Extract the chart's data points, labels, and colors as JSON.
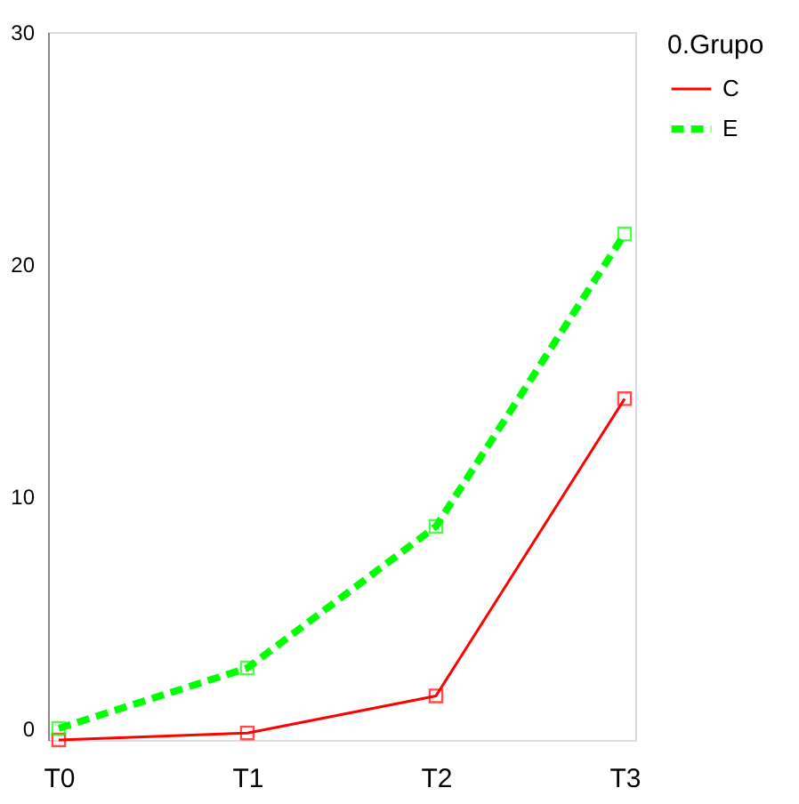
{
  "chart_data": {
    "type": "line",
    "categories": [
      "T0",
      "T1",
      "T2",
      "T3"
    ],
    "legend_title": "0.Grupo",
    "series": [
      {
        "name": "C",
        "color": "#ff0000",
        "values": [
          -0.5,
          -0.2,
          1.4,
          14.2
        ],
        "line_style": "solid"
      },
      {
        "name": "E",
        "color": "#00ff00",
        "values": [
          0,
          2.6,
          8.7,
          21.3
        ],
        "line_style": "dashed"
      }
    ],
    "ylim": [
      -0.5,
      30
    ],
    "yticks": [
      0,
      10,
      20,
      30
    ],
    "grid": false,
    "legend": "right",
    "marker": "square"
  }
}
